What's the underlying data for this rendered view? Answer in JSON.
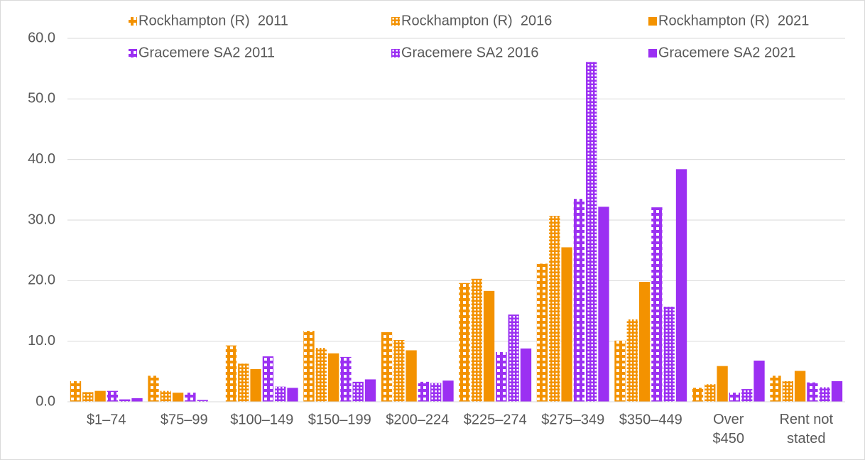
{
  "chart_data": {
    "type": "bar",
    "categories": [
      "$1–74",
      "$75–99",
      "$100–149",
      "$150–199",
      "$200–224",
      "$225–274",
      "$275–349",
      "$350–449",
      "Over $450",
      "Rent not stated"
    ],
    "series": [
      {
        "name": "Rockhampton (R)  2011",
        "color": "#f39200",
        "pattern": "large-checker",
        "values": [
          3.4,
          4.3,
          9.3,
          11.7,
          11.5,
          19.6,
          22.8,
          10.1,
          2.3,
          4.3
        ]
      },
      {
        "name": "Rockhampton (R)  2016",
        "color": "#f39200",
        "pattern": "small-checker",
        "values": [
          1.6,
          1.8,
          6.3,
          8.9,
          10.2,
          20.3,
          30.7,
          13.6,
          2.9,
          3.4
        ]
      },
      {
        "name": "Rockhampton (R)  2021",
        "color": "#f39200",
        "pattern": "solid",
        "values": [
          1.8,
          1.5,
          5.4,
          8.0,
          8.5,
          18.3,
          25.5,
          19.8,
          5.9,
          5.1
        ]
      },
      {
        "name": "Gracemere SA2 2011",
        "color": "#9b30f2",
        "pattern": "large-checker",
        "values": [
          1.8,
          1.5,
          7.5,
          7.4,
          3.3,
          8.2,
          33.5,
          32.1,
          1.5,
          3.2
        ]
      },
      {
        "name": "Gracemere SA2 2016",
        "color": "#9b30f2",
        "pattern": "small-checker",
        "values": [
          0.4,
          0.3,
          2.5,
          3.3,
          3.1,
          14.4,
          56.1,
          15.7,
          2.1,
          2.4
        ]
      },
      {
        "name": "Gracemere SA2 2021",
        "color": "#9b30f2",
        "pattern": "solid",
        "values": [
          0.6,
          0.0,
          2.3,
          3.7,
          3.5,
          8.8,
          32.2,
          38.4,
          6.8,
          3.4
        ]
      }
    ],
    "ylim": [
      0,
      60
    ],
    "yticks": [
      {
        "value": 0,
        "label": "0.0"
      },
      {
        "value": 10,
        "label": "10.0"
      },
      {
        "value": 20,
        "label": "20.0"
      },
      {
        "value": 30,
        "label": "30.0"
      },
      {
        "value": 40,
        "label": "40.0"
      },
      {
        "value": 50,
        "label": "50.0"
      },
      {
        "value": 60,
        "label": "60.0"
      }
    ],
    "grid": true,
    "legend": "top"
  }
}
